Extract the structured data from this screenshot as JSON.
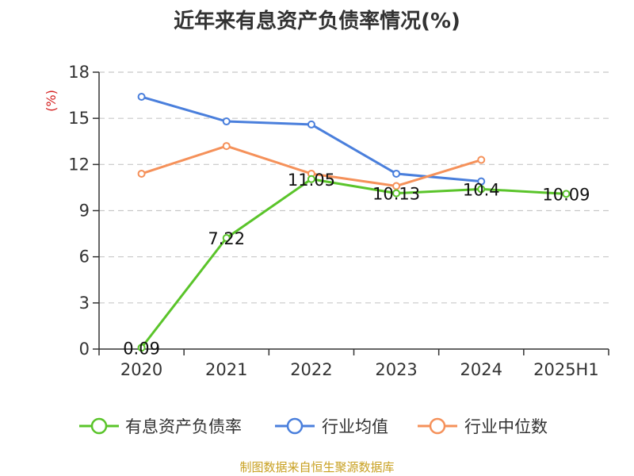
{
  "title": "近年来有息资产负债率情况(%)",
  "source": "制图数据来自恒生聚源数据库",
  "chart_data": {
    "type": "line",
    "title": "近年来有息资产负债率情况(%)",
    "ylabel": "(%)",
    "ylim": [
      0,
      18
    ],
    "yticks": [
      0,
      3,
      6,
      9,
      12,
      15,
      18
    ],
    "categories": [
      "2020",
      "2021",
      "2022",
      "2023",
      "2024",
      "2025H1"
    ],
    "grid": true,
    "legend_position": "bottom",
    "series": [
      {
        "name": "有息资产负债率",
        "color": "#5ac42a",
        "values": [
          0.09,
          7.22,
          11.05,
          10.13,
          10.4,
          10.09
        ],
        "labels": [
          "0.09",
          "7.22",
          "11.05",
          "10.13",
          "10.4",
          "10.09"
        ]
      },
      {
        "name": "行业均值",
        "color": "#4a7fdc",
        "values": [
          16.4,
          14.8,
          14.6,
          11.4,
          10.9,
          null
        ]
      },
      {
        "name": "行业中位数",
        "color": "#f5915a",
        "values": [
          11.4,
          13.2,
          11.4,
          10.6,
          12.3,
          null
        ]
      }
    ]
  }
}
